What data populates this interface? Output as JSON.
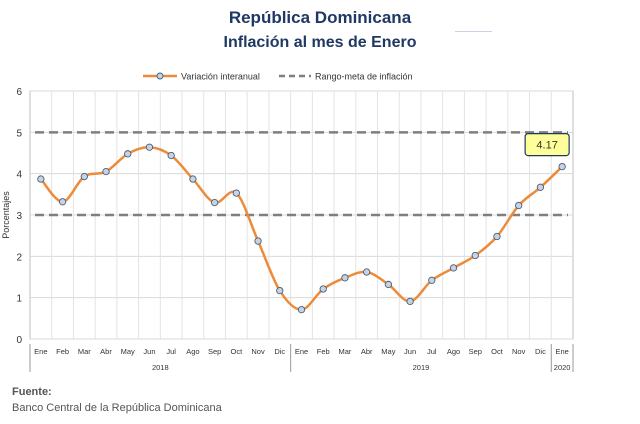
{
  "chart_data": {
    "type": "line",
    "title": "República Dominicana",
    "subtitle": "Inflación al mes de Enero",
    "ylabel": "Porcentajes",
    "xlabel": "",
    "ylim": [
      0,
      6
    ],
    "yticks": [
      0,
      1,
      2,
      3,
      4,
      5,
      6
    ],
    "grid": true,
    "legend_position": "top",
    "categories": [
      "Ene",
      "Feb",
      "Mar",
      "Abr",
      "May",
      "Jun",
      "Jul",
      "Ago",
      "Sep",
      "Oct",
      "Nov",
      "Dic",
      "Ene",
      "Feb",
      "Mar",
      "Abr",
      "May",
      "Jun",
      "Jul",
      "Ago",
      "Sep",
      "Oct",
      "Nov",
      "Dic",
      "Ene"
    ],
    "year_groups": [
      {
        "label": "2018",
        "start": 0,
        "end": 11
      },
      {
        "label": "2019",
        "start": 12,
        "end": 23
      },
      {
        "label": "2020",
        "start": 24,
        "end": 24
      }
    ],
    "series": [
      {
        "name": "Variación interanual",
        "color": "#ed8b3a",
        "values": [
          3.87,
          3.32,
          3.93,
          4.05,
          4.48,
          4.64,
          4.44,
          3.87,
          3.3,
          3.53,
          2.37,
          1.17,
          0.71,
          1.21,
          1.48,
          1.62,
          1.32,
          0.91,
          1.42,
          1.72,
          2.02,
          2.48,
          3.23,
          3.67,
          4.17
        ]
      }
    ],
    "target_band": {
      "name": "Rango-meta de inflación",
      "color": "#7f7f7f",
      "lower": 3,
      "upper": 5
    },
    "annotation": {
      "label": "4.17",
      "index": 24,
      "value": 4.17
    }
  },
  "source": {
    "heading": "Fuente:",
    "text": "Banco Central de la República Dominicana"
  }
}
